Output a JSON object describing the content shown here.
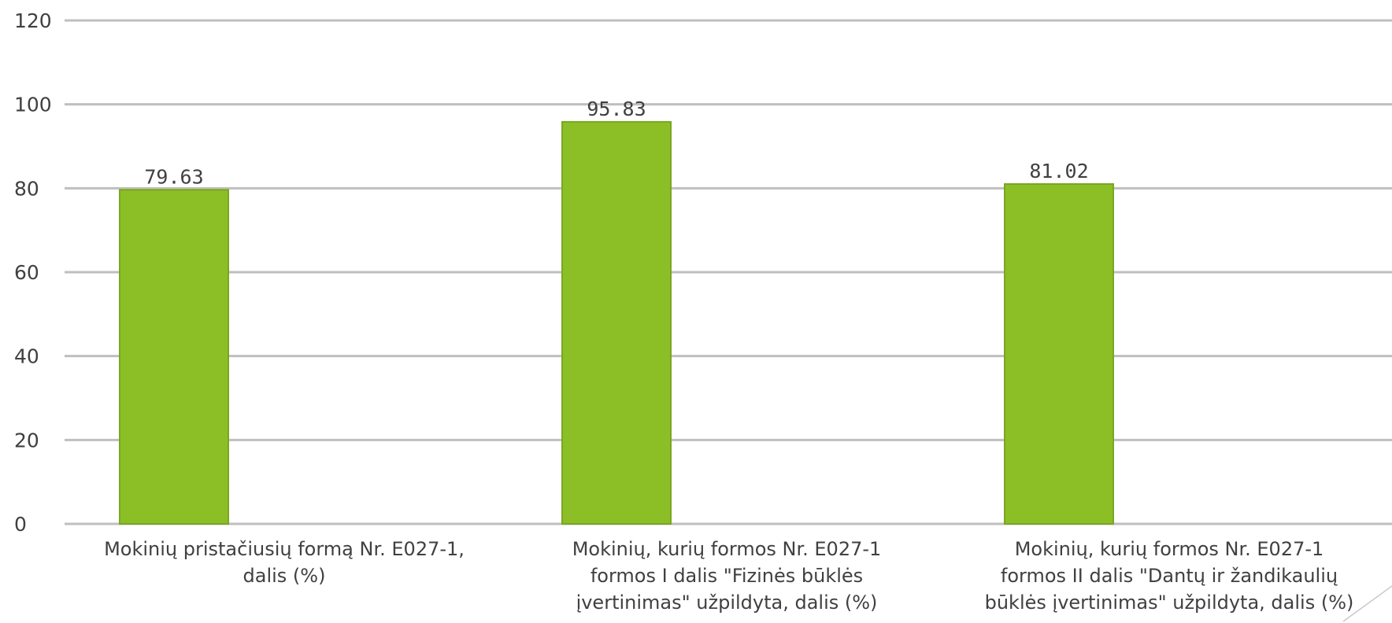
{
  "chart_data": {
    "type": "bar",
    "categories": [
      [
        "Mokinių pristačiusių formą Nr. E027-1,",
        "dalis (%)"
      ],
      [
        "Mokinių, kurių formos Nr. E027-1",
        "formos I dalis \"Fizinės būklės",
        "įvertinimas\" užpildyta, dalis (%)"
      ],
      [
        "Mokinių, kurių formos Nr. E027-1",
        "formos II dalis \"Dantų ir žandikaulių",
        "būklės įvertinimas\" užpildyta, dalis (%)"
      ]
    ],
    "values": [
      79.63,
      95.83,
      81.02
    ],
    "data_labels": [
      "79.63",
      "95.83",
      "81.02"
    ],
    "y_ticks": [
      0,
      20,
      40,
      60,
      80,
      100,
      120
    ],
    "ylim": [
      0,
      120
    ],
    "grid": true,
    "legend": "none",
    "bar_color": "#8cbf26",
    "bar_edge_color": "#7aa622",
    "grid_color": "#bfbfbf",
    "text_color": "#404040"
  }
}
